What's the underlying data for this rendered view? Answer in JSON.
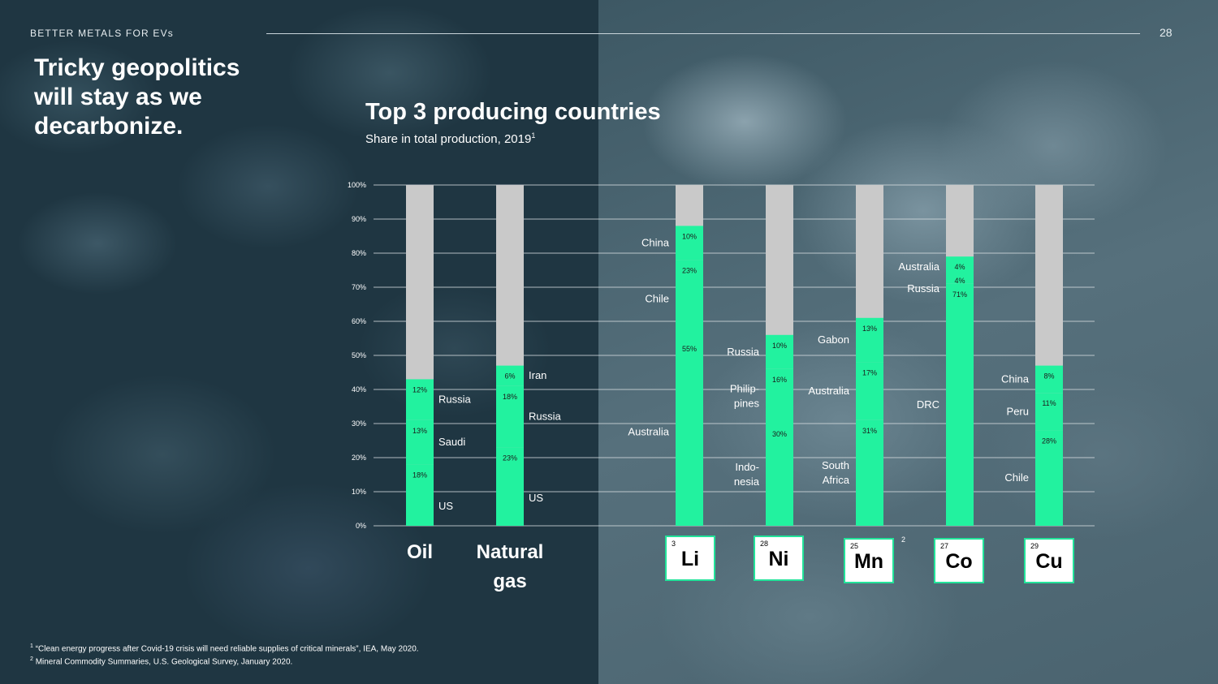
{
  "header": {
    "section": "BETTER METALS FOR EVs",
    "page_number": "28"
  },
  "headline": "Tricky geopolitics will stay as we decarbonize.",
  "chart_title": "Top 3 producing countries",
  "chart_subtitle": "Share in total production, 2019",
  "chart_subtitle_sup": "1",
  "colors": {
    "bar_share": "#22f29f",
    "bar_remainder": "#c9c9c9",
    "gridline": "#d7dde0",
    "element_box_border": "#22e39a"
  },
  "elements": [
    {
      "symbol": "Li",
      "atomic_number": "3",
      "source_mark": ""
    },
    {
      "symbol": "Ni",
      "atomic_number": "28",
      "source_mark": ""
    },
    {
      "symbol": "Mn",
      "atomic_number": "25",
      "source_mark": "2"
    },
    {
      "symbol": "Co",
      "atomic_number": "27",
      "source_mark": ""
    },
    {
      "symbol": "Cu",
      "atomic_number": "29",
      "source_mark": ""
    }
  ],
  "chart_data": {
    "type": "bar",
    "stacked": true,
    "ylim": [
      0,
      100
    ],
    "y_ticks": [
      "0%",
      "10%",
      "20%",
      "30%",
      "40%",
      "50%",
      "60%",
      "70%",
      "80%",
      "90%",
      "100%"
    ],
    "grid": true,
    "categories": [
      {
        "label": [
          "Oil"
        ],
        "segments": [
          {
            "value": 18,
            "label": "18%",
            "country": [
              "US"
            ]
          },
          {
            "value": 13,
            "label": "13%",
            "country": [
              "Saudi"
            ]
          },
          {
            "value": 12,
            "label": "12%",
            "country": [
              "Russia"
            ]
          }
        ]
      },
      {
        "label": [
          "Natural",
          "gas"
        ],
        "segments": [
          {
            "value": 23,
            "label": "23%",
            "country": [
              "US"
            ]
          },
          {
            "value": 18,
            "label": "18%",
            "country": [
              "Russia"
            ]
          },
          {
            "value": 6,
            "label": "6%",
            "country": [
              "Iran"
            ]
          }
        ]
      },
      {
        "label": [
          "Li"
        ],
        "segments": [
          {
            "value": 55,
            "label": "55%",
            "country": [
              "Australia"
            ]
          },
          {
            "value": 23,
            "label": "23%",
            "country": [
              "Chile"
            ]
          },
          {
            "value": 10,
            "label": "10%",
            "country": [
              "China"
            ]
          }
        ]
      },
      {
        "label": [
          "Ni"
        ],
        "segments": [
          {
            "value": 30,
            "label": "30%",
            "country": [
              "Indo-",
              "nesia"
            ]
          },
          {
            "value": 16,
            "label": "16%",
            "country": [
              "Philip-",
              "pines"
            ]
          },
          {
            "value": 10,
            "label": "10%",
            "country": [
              "Russia"
            ]
          }
        ]
      },
      {
        "label": [
          "Mn"
        ],
        "segments": [
          {
            "value": 31,
            "label": "31%",
            "country": [
              "South",
              "Africa"
            ]
          },
          {
            "value": 17,
            "label": "17%",
            "country": [
              "Australia"
            ]
          },
          {
            "value": 13,
            "label": "13%",
            "country": [
              "Gabon"
            ]
          }
        ]
      },
      {
        "label": [
          "Co"
        ],
        "segments": [
          {
            "value": 71,
            "label": "71%",
            "country": [
              "DRC"
            ]
          },
          {
            "value": 4,
            "label": "4%",
            "country": [
              "Russia"
            ]
          },
          {
            "value": 4,
            "label": "4%",
            "country": [
              "Australia"
            ]
          }
        ]
      },
      {
        "label": [
          "Cu"
        ],
        "segments": [
          {
            "value": 28,
            "label": "28%",
            "country": [
              "Chile"
            ]
          },
          {
            "value": 11,
            "label": "11%",
            "country": [
              "Peru"
            ]
          },
          {
            "value": 8,
            "label": "8%",
            "country": [
              "China"
            ]
          }
        ]
      }
    ]
  },
  "footnotes": [
    {
      "mark": "1",
      "text": "“Clean energy progress after Covid-19 crisis will need reliable supplies of critical minerals”, IEA, May 2020."
    },
    {
      "mark": "2",
      "text": "Mineral Commodity Summaries, U.S. Geological Survey, January 2020."
    }
  ]
}
